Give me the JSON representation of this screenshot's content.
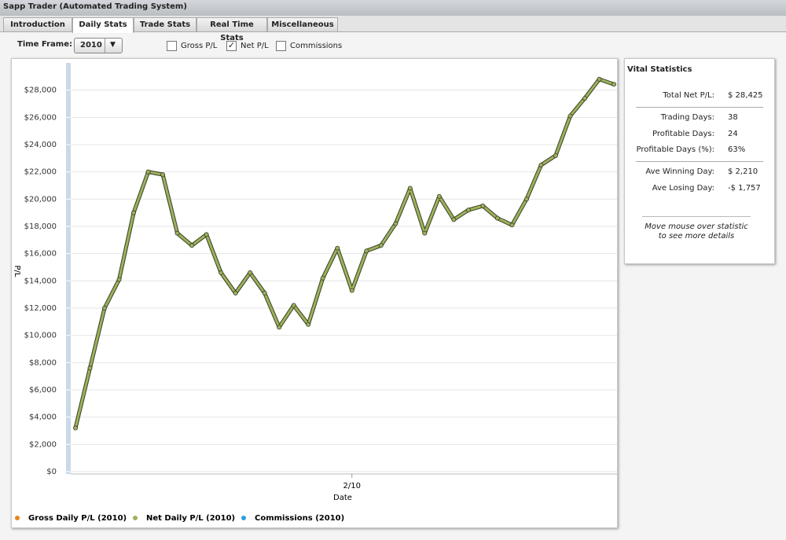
{
  "window_title": "Sapp Trader (Automated Trading System)",
  "tabs": [
    "Introduction",
    "Daily Stats",
    "Trade Stats",
    "Real Time Stats",
    "Miscellaneous"
  ],
  "active_tab": 1,
  "controls": {
    "time_frame_label": "Time Frame:",
    "time_frame": "2010",
    "checkboxes": [
      {
        "label": "Gross P/L",
        "checked": false
      },
      {
        "label": "Net P/L",
        "checked": true
      },
      {
        "label": "Commissions",
        "checked": false
      }
    ]
  },
  "chart_data": {
    "type": "line",
    "y_label": "P/L",
    "x_label": "Date",
    "categories": [
      null,
      null,
      null,
      null,
      null,
      null,
      null,
      null,
      null,
      null,
      null,
      null,
      null,
      null,
      null,
      null,
      null,
      null,
      null,
      "2/10",
      null,
      null,
      null,
      null,
      null,
      null,
      null,
      null,
      null,
      null,
      null,
      null,
      null,
      null,
      null,
      null,
      null,
      null
    ],
    "series": [
      {
        "name": "Net Daily P/L (2010)",
        "color": "#9cb25a",
        "values": [
          3200,
          7600,
          12000,
          14100,
          19000,
          22000,
          21800,
          17500,
          16600,
          17400,
          14600,
          13100,
          14600,
          13100,
          10600,
          12200,
          10800,
          14200,
          16400,
          13300,
          16200,
          16600,
          18200,
          20800,
          17500,
          20200,
          18500,
          19200,
          19500,
          18600,
          18100,
          20000,
          22500,
          23200,
          26100,
          27400,
          28800,
          28425
        ]
      }
    ],
    "legend_extra": [
      {
        "name": "Gross Daily P/L (2010)",
        "color": "#e8851e"
      },
      {
        "name": "Commissions (2010)",
        "color": "#2b9fd8"
      }
    ],
    "ylim": [
      0,
      30000
    ],
    "yticks": [
      {
        "value": 0,
        "label": "$0"
      },
      {
        "value": 2000,
        "label": "$2,000"
      },
      {
        "value": 4000,
        "label": "$4,000"
      },
      {
        "value": 6000,
        "label": "$6,000"
      },
      {
        "value": 8000,
        "label": "$8,000"
      },
      {
        "value": 10000,
        "label": "$10,000"
      },
      {
        "value": 12000,
        "label": "$12,000"
      },
      {
        "value": 14000,
        "label": "$14,000"
      },
      {
        "value": 16000,
        "label": "$16,000"
      },
      {
        "value": 18000,
        "label": "$18,000"
      },
      {
        "value": 20000,
        "label": "$20,000"
      },
      {
        "value": 22000,
        "label": "$22,000"
      },
      {
        "value": 24000,
        "label": "$24,000"
      },
      {
        "value": 26000,
        "label": "$26,000"
      },
      {
        "value": 28000,
        "label": "$28,000"
      }
    ],
    "grid": true
  },
  "vital_statistics": {
    "title": "Vital Statistics",
    "groups": [
      [
        {
          "label": "Total Net P/L:",
          "value": "$ 28,425"
        }
      ],
      [
        {
          "label": "Trading Days:",
          "value": "38"
        },
        {
          "label": "Profitable Days:",
          "value": "24"
        },
        {
          "label": "Profitable Days (%):",
          "value": "63%"
        }
      ],
      [
        {
          "label": "Ave Winning Day:",
          "value": "$ 2,210"
        },
        {
          "label": "Ave Losing Day:",
          "value": "-$ 1,757"
        }
      ]
    ],
    "hint": "Move mouse over statistic to see more details"
  }
}
